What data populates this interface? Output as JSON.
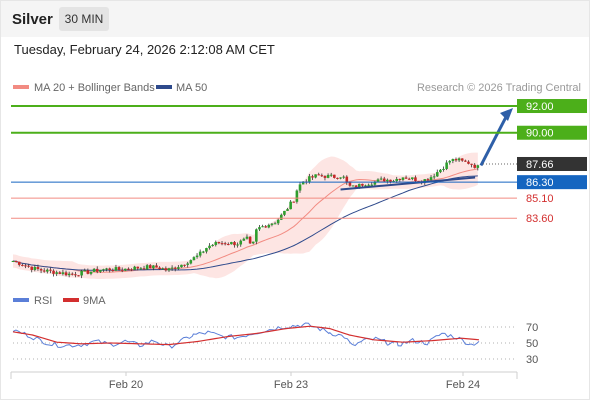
{
  "header": {
    "title": "Silver",
    "timeframe": "30 MIN",
    "datetime": "Tuesday, February 24, 2026 2:12:08 AM CET"
  },
  "legend": {
    "ma20": "MA 20 + Bollinger Bands",
    "ma50": "MA 50",
    "copyright": "Research © 2026 Trading Central",
    "rsi": "RSI",
    "rsi_ma": "9MA"
  },
  "colors": {
    "up_candle": "#2e9e2e",
    "down_candle": "#c62828",
    "ma20": "#f28b82",
    "ma50": "#2e4a8c",
    "bollinger_fill": "#fde0de",
    "resistance": "#4caf1a",
    "support": "#f28b82",
    "pivot": "#1565c0",
    "last_price": "#333333",
    "rsi_line": "#5b7fd8",
    "rsi_ma_line": "#d32f2f"
  },
  "chart_data": [
    {
      "type": "candlestick",
      "series": [
        {
          "name": "MA 20 + Bollinger Bands"
        },
        {
          "name": "MA 50"
        }
      ],
      "y_axis_side": "right",
      "levels": [
        {
          "value": 92.0,
          "label": "92.00",
          "kind": "resistance"
        },
        {
          "value": 90.0,
          "label": "90.00",
          "kind": "resistance"
        },
        {
          "value": 87.66,
          "label": "87.66",
          "kind": "last price"
        },
        {
          "value": 86.3,
          "label": "86.30",
          "kind": "pivot"
        },
        {
          "value": 85.1,
          "label": "85.10",
          "kind": "support"
        },
        {
          "value": 83.6,
          "label": "83.60",
          "kind": "support"
        }
      ],
      "x_tick_labels": [
        "Feb 20",
        "Feb 23",
        "Feb 24"
      ],
      "price_path": [
        [
          0,
          80.4
        ],
        [
          10,
          80.15
        ],
        [
          20,
          79.85
        ],
        [
          30,
          79.7
        ],
        [
          40,
          79.6
        ],
        [
          50,
          79.5
        ],
        [
          60,
          79.4
        ],
        [
          70,
          79.5
        ],
        [
          80,
          79.6
        ],
        [
          90,
          79.75
        ],
        [
          100,
          79.8
        ],
        [
          110,
          79.75
        ],
        [
          120,
          79.85
        ],
        [
          130,
          79.9
        ],
        [
          140,
          79.95
        ],
        [
          150,
          79.9
        ],
        [
          158,
          79.7
        ],
        [
          165,
          79.9
        ],
        [
          172,
          80.1
        ],
        [
          180,
          80.4
        ],
        [
          190,
          80.8
        ],
        [
          200,
          81.5
        ],
        [
          210,
          81.75
        ],
        [
          220,
          81.75
        ],
        [
          230,
          81.7
        ],
        [
          240,
          82.05
        ],
        [
          245,
          81.3
        ],
        [
          250,
          82.8
        ],
        [
          260,
          83.1
        ],
        [
          270,
          83.35
        ],
        [
          280,
          84.2
        ],
        [
          288,
          85.0
        ],
        [
          292,
          85.9
        ],
        [
          298,
          86.4
        ],
        [
          305,
          86.6
        ],
        [
          312,
          86.8
        ],
        [
          320,
          86.75
        ],
        [
          330,
          86.7
        ],
        [
          338,
          86.8
        ],
        [
          344,
          86.0
        ],
        [
          350,
          85.9
        ],
        [
          360,
          86.2
        ],
        [
          370,
          86.3
        ],
        [
          380,
          86.5
        ],
        [
          390,
          86.45
        ],
        [
          400,
          86.7
        ],
        [
          410,
          86.55
        ],
        [
          420,
          86.4
        ],
        [
          430,
          86.75
        ],
        [
          440,
          87.35
        ],
        [
          448,
          87.9
        ],
        [
          455,
          88.0
        ],
        [
          462,
          87.8
        ],
        [
          468,
          87.75
        ],
        [
          474,
          87.5
        ],
        [
          478,
          87.4
        ]
      ],
      "forecast_arrow": {
        "from": 87.55,
        "to": 92.0
      },
      "trendline": {
        "from": 85.75,
        "to": 86.65
      }
    },
    {
      "type": "line",
      "series": [
        {
          "name": "RSI"
        },
        {
          "name": "9MA"
        }
      ],
      "y_tick_labels": [
        "70",
        "50",
        "30"
      ],
      "rsi_path": [
        [
          0,
          66
        ],
        [
          15,
          60
        ],
        [
          25,
          55
        ],
        [
          40,
          48
        ],
        [
          55,
          47
        ],
        [
          70,
          48
        ],
        [
          85,
          52
        ],
        [
          100,
          48
        ],
        [
          115,
          52
        ],
        [
          130,
          47
        ],
        [
          145,
          53
        ],
        [
          160,
          45
        ],
        [
          172,
          52
        ],
        [
          185,
          60
        ],
        [
          200,
          63
        ],
        [
          215,
          58
        ],
        [
          230,
          57
        ],
        [
          245,
          62
        ],
        [
          260,
          66
        ],
        [
          275,
          70
        ],
        [
          292,
          72
        ],
        [
          300,
          73
        ],
        [
          312,
          69
        ],
        [
          325,
          63
        ],
        [
          340,
          58
        ],
        [
          348,
          46
        ],
        [
          360,
          53
        ],
        [
          372,
          55
        ],
        [
          385,
          50
        ],
        [
          395,
          48
        ],
        [
          410,
          53
        ],
        [
          425,
          50
        ],
        [
          440,
          62
        ],
        [
          455,
          57
        ],
        [
          470,
          48
        ],
        [
          478,
          52
        ]
      ],
      "rsi_ma_path": [
        [
          0,
          64
        ],
        [
          20,
          60
        ],
        [
          45,
          51
        ],
        [
          70,
          49
        ],
        [
          100,
          50
        ],
        [
          130,
          49
        ],
        [
          160,
          48
        ],
        [
          190,
          52
        ],
        [
          220,
          58
        ],
        [
          250,
          62
        ],
        [
          280,
          68
        ],
        [
          305,
          71
        ],
        [
          325,
          68
        ],
        [
          345,
          60
        ],
        [
          370,
          54
        ],
        [
          400,
          51
        ],
        [
          430,
          53
        ],
        [
          460,
          56
        ],
        [
          478,
          54
        ]
      ]
    }
  ]
}
